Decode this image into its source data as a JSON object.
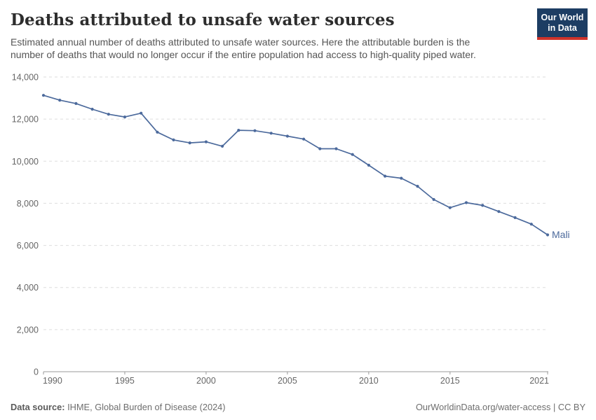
{
  "header": {
    "title": "Deaths attributed to unsafe water sources",
    "subtitle_line1": "Estimated annual number of deaths attributed to unsafe water sources. Here the attributable burden is the",
    "subtitle_line2": "number of deaths that would no longer occur if the entire population had access to high-quality piped water.",
    "logo": {
      "line1": "Our World",
      "line2": "in Data"
    }
  },
  "footer": {
    "source_label": "Data source:",
    "source_value": " IHME, Global Burden of Disease (2024)",
    "url": "OurWorldinData.org/water-access",
    "separator": " | ",
    "license": "CC BY"
  },
  "colors": {
    "line": "#4c6a9c",
    "series_label": "#4c6a9c",
    "grid": "#dddddd",
    "axis": "#999999",
    "tick_text": "#666666",
    "logo_bg": "#1d3d63",
    "logo_red": "#cf332a"
  },
  "chart_data": {
    "type": "line",
    "title": "Deaths attributed to unsafe water sources",
    "xlabel": "",
    "ylabel": "",
    "ylim": [
      0,
      14000
    ],
    "yticks": [
      0,
      2000,
      4000,
      6000,
      8000,
      10000,
      12000,
      14000
    ],
    "ytick_labels": [
      "0",
      "2,000",
      "4,000",
      "6,000",
      "8,000",
      "10,000",
      "12,000",
      "14,000"
    ],
    "xticks": [
      1990,
      1995,
      2000,
      2005,
      2010,
      2015,
      2021
    ],
    "xtick_labels": [
      "1990",
      "1995",
      "2000",
      "2005",
      "2010",
      "2015",
      "2021"
    ],
    "xlim": [
      1990,
      2021
    ],
    "grid": "horizontal-dashed",
    "legend_position": "end-of-line-label",
    "series": [
      {
        "name": "Mali",
        "x": [
          1990,
          1991,
          1992,
          1993,
          1994,
          1995,
          1996,
          1997,
          1998,
          1999,
          2000,
          2001,
          2002,
          2003,
          2004,
          2005,
          2006,
          2007,
          2008,
          2009,
          2010,
          2011,
          2012,
          2013,
          2014,
          2015,
          2016,
          2017,
          2018,
          2019,
          2020,
          2021
        ],
        "values": [
          13130,
          12900,
          12740,
          12470,
          12230,
          12100,
          12280,
          11380,
          11010,
          10870,
          10920,
          10710,
          11470,
          11450,
          11330,
          11190,
          11050,
          10590,
          10590,
          10320,
          9810,
          9290,
          9190,
          8810,
          8180,
          7790,
          8030,
          7900,
          7610,
          7320,
          7010,
          6500
        ]
      }
    ]
  }
}
